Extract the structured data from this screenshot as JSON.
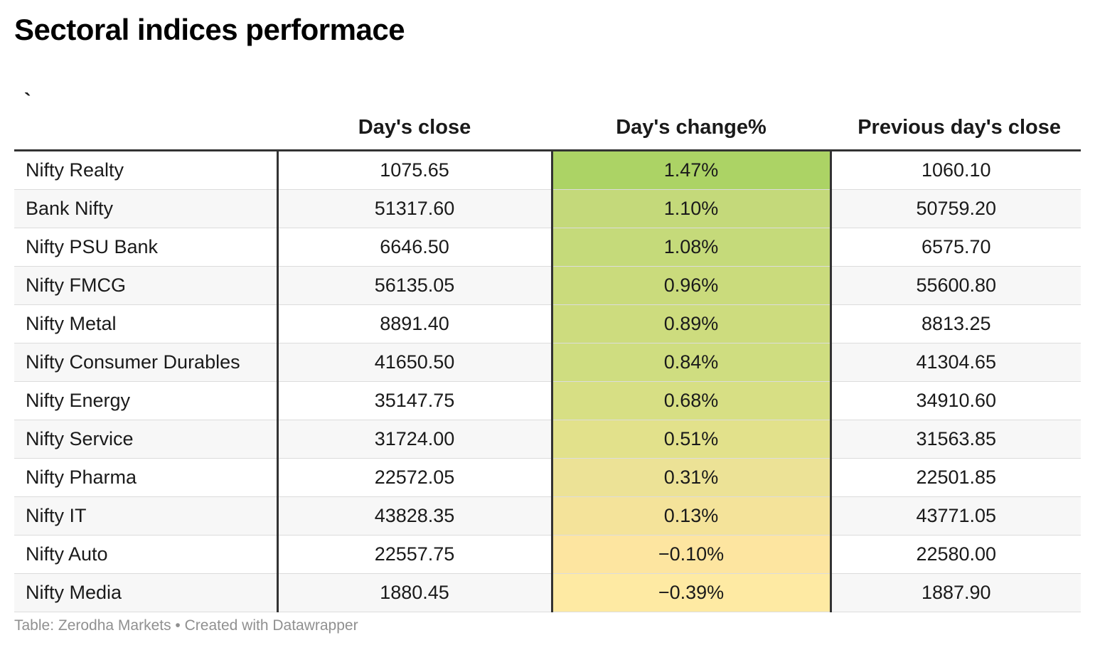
{
  "title": "Sectoral indices performace",
  "chart_data": {
    "type": "table",
    "title": "Sectoral indices performace",
    "columns": [
      "`",
      "Day's close",
      "Day's change%",
      "Previous day's close"
    ],
    "rows": [
      {
        "name": "Nifty Realty",
        "close": "1075.65",
        "change": "1.47%",
        "prev": "1060.10",
        "change_value": 1.47,
        "color": "#acd365"
      },
      {
        "name": "Bank Nifty",
        "close": "51317.60",
        "change": "1.10%",
        "prev": "50759.20",
        "change_value": 1.1,
        "color": "#c4d97a"
      },
      {
        "name": "Nifty PSU Bank",
        "close": "6646.50",
        "change": "1.08%",
        "prev": "6575.70",
        "change_value": 1.08,
        "color": "#c5da7a"
      },
      {
        "name": "Nifty FMCG",
        "close": "56135.05",
        "change": "0.96%",
        "prev": "55600.80",
        "change_value": 0.96,
        "color": "#cadb7c"
      },
      {
        "name": "Nifty Metal",
        "close": "8891.40",
        "change": "0.89%",
        "prev": "8813.25",
        "change_value": 0.89,
        "color": "#cddc7e"
      },
      {
        "name": "Nifty Consumer Durables",
        "close": "41650.50",
        "change": "0.84%",
        "prev": "41304.65",
        "change_value": 0.84,
        "color": "#cfdd80"
      },
      {
        "name": "Nifty Energy",
        "close": "35147.75",
        "change": "0.68%",
        "prev": "34910.60",
        "change_value": 0.68,
        "color": "#d7df84"
      },
      {
        "name": "Nifty Service",
        "close": "31724.00",
        "change": "0.51%",
        "prev": "31563.85",
        "change_value": 0.51,
        "color": "#e2e18b"
      },
      {
        "name": "Nifty Pharma",
        "close": "22572.05",
        "change": "0.31%",
        "prev": "22501.85",
        "change_value": 0.31,
        "color": "#ece296"
      },
      {
        "name": "Nifty IT",
        "close": "43828.35",
        "change": "0.13%",
        "prev": "43771.05",
        "change_value": 0.13,
        "color": "#f4e39a"
      },
      {
        "name": "Nifty Auto",
        "close": "22557.75",
        "change": "−0.10%",
        "prev": "22580.00",
        "change_value": -0.1,
        "color": "#fde5a0"
      },
      {
        "name": "Nifty Media",
        "close": "1880.45",
        "change": "−0.39%",
        "prev": "1887.90",
        "change_value": -0.39,
        "color": "#feeaa3"
      }
    ]
  },
  "footer": "Table: Zerodha Markets • Created with Datawrapper"
}
